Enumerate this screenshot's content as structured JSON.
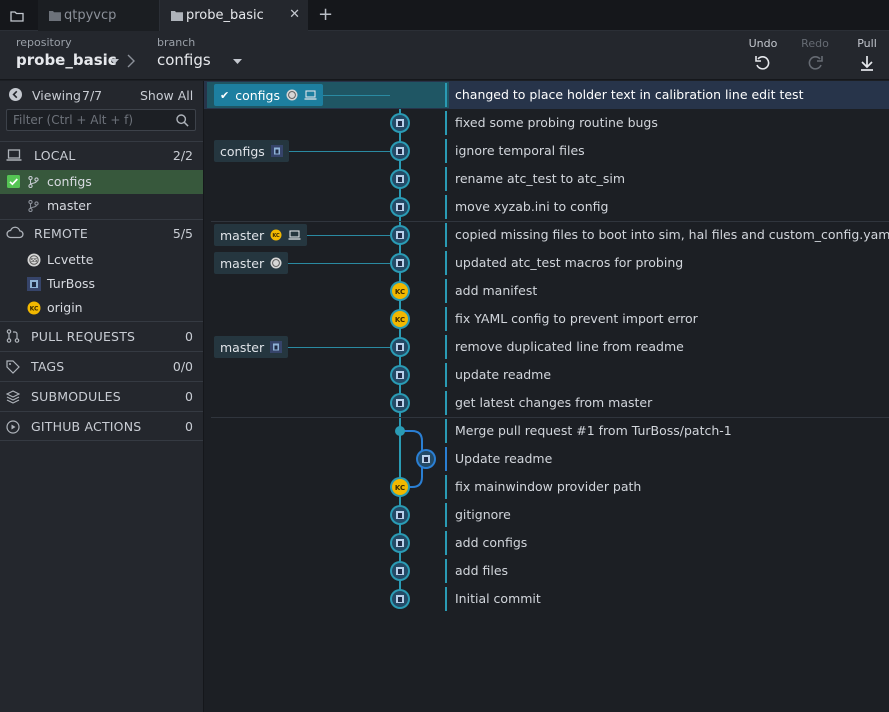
{
  "tabs": [
    {
      "label": "qtpyvcp",
      "active": false
    },
    {
      "label": "probe_basic",
      "active": true
    }
  ],
  "toolbar": {
    "repository_label": "repository",
    "repository_value": "probe_basic",
    "branch_label": "branch",
    "branch_value": "configs",
    "undo_label": "Undo",
    "redo_label": "Redo",
    "pull_label": "Pull"
  },
  "sidebar": {
    "viewing_label": "Viewing",
    "viewing_count": "7/7",
    "show_all_label": "Show All",
    "filter_placeholder": "Filter (Ctrl + Alt + f)",
    "local": {
      "label": "LOCAL",
      "count": "2/2"
    },
    "local_branches": [
      {
        "label": "configs",
        "checked": true
      },
      {
        "label": "master",
        "checked": false
      }
    ],
    "remote": {
      "label": "REMOTE",
      "count": "5/5"
    },
    "remotes": [
      {
        "label": "Lcvette"
      },
      {
        "label": "TurBoss"
      },
      {
        "label": "origin"
      }
    ],
    "pull_requests": {
      "label": "PULL REQUESTS",
      "count": "0"
    },
    "tags": {
      "label": "TAGS",
      "count": "0/0"
    },
    "submodules": {
      "label": "SUBMODULES",
      "count": "0"
    },
    "github_actions": {
      "label": "GITHUB ACTIONS",
      "count": "0"
    }
  },
  "commits": [
    {
      "message": "changed to place holder text in calibration line edit test",
      "selected": true
    },
    {
      "message": "fixed some probing routine bugs"
    },
    {
      "message": "ignore temporal files"
    },
    {
      "message": "rename atc_test to atc_sim"
    },
    {
      "message": "move xyzab.ini to config"
    },
    {
      "message": "copied missing files to boot into sim, hal files and custom_config.yaml"
    },
    {
      "message": "updated atc_test macros for probing"
    },
    {
      "message": "add manifest"
    },
    {
      "message": "fix YAML config to prevent import error"
    },
    {
      "message": "remove duplicated line from readme"
    },
    {
      "message": "update readme"
    },
    {
      "message": "get latest changes from master"
    },
    {
      "message": "Merge pull request #1 from TurBoss/patch-1"
    },
    {
      "message": "Update readme"
    },
    {
      "message": "fix mainwindow provider path"
    },
    {
      "message": "gitignore"
    },
    {
      "message": "add configs"
    },
    {
      "message": "add files"
    },
    {
      "message": "Initial commit"
    }
  ],
  "branch_tags": [
    {
      "label": "configs",
      "row": 0,
      "head": true
    },
    {
      "label": "configs",
      "row": 2
    },
    {
      "label": "master",
      "row": 5
    },
    {
      "label": "master",
      "row": 6
    },
    {
      "label": "master",
      "row": 9
    }
  ],
  "colors": {
    "accent": "#2a9bb4",
    "local_checked": "#37583c",
    "selected_row": "#27344a",
    "avatar_yellow": "#f2b800"
  }
}
